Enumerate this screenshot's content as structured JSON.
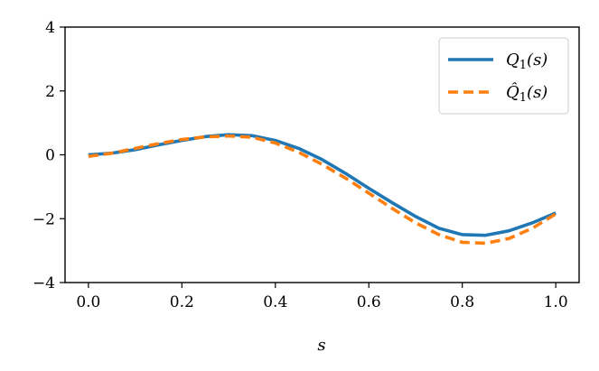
{
  "chart_data": {
    "type": "line",
    "title": "",
    "xlabel": "s",
    "ylabel": "",
    "xlim": [
      -0.05,
      1.05
    ],
    "ylim": [
      -4,
      4
    ],
    "xticks": [
      0.0,
      0.2,
      0.4,
      0.6,
      0.8,
      1.0
    ],
    "xtick_labels": [
      "0.0",
      "0.2",
      "0.4",
      "0.6",
      "0.8",
      "1.0"
    ],
    "yticks": [
      -4,
      -2,
      0,
      2,
      4
    ],
    "ytick_labels": [
      "−4",
      "−2",
      "0",
      "2",
      "4"
    ],
    "grid": false,
    "legend_position": "top-right",
    "x": [
      0.0,
      0.05,
      0.1,
      0.15,
      0.2,
      0.25,
      0.3,
      0.35,
      0.4,
      0.45,
      0.5,
      0.55,
      0.6,
      0.65,
      0.7,
      0.75,
      0.8,
      0.85,
      0.9,
      0.95,
      1.0
    ],
    "series": [
      {
        "name": "Q1(s)",
        "legend_main": "Q",
        "legend_sub": "1",
        "legend_arg": "(s)",
        "color": "#1f77b4",
        "style": "solid",
        "values": [
          0.0,
          0.05,
          0.16,
          0.31,
          0.45,
          0.57,
          0.63,
          0.6,
          0.45,
          0.2,
          -0.15,
          -0.58,
          -1.05,
          -1.5,
          -1.93,
          -2.3,
          -2.5,
          -2.52,
          -2.38,
          -2.13,
          -1.82
        ]
      },
      {
        "name": "Q̂1(s)",
        "legend_main": "Q̂",
        "legend_sub": "1",
        "legend_arg": "(s)",
        "color": "#ff7f0e",
        "style": "dashed",
        "values": [
          -0.05,
          0.05,
          0.2,
          0.35,
          0.48,
          0.56,
          0.59,
          0.55,
          0.37,
          0.08,
          -0.3,
          -0.73,
          -1.2,
          -1.68,
          -2.13,
          -2.5,
          -2.74,
          -2.77,
          -2.62,
          -2.3,
          -1.85
        ]
      }
    ]
  }
}
